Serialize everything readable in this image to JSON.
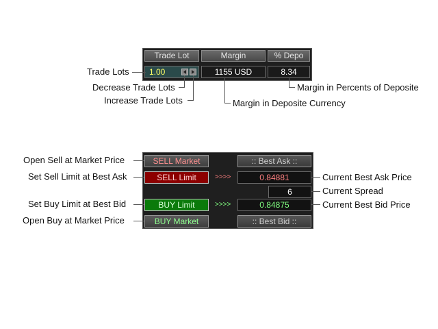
{
  "top_panel": {
    "headers": {
      "trade_lot": "Trade Lot",
      "margin": "Margin",
      "pct_depo": "% Depo"
    },
    "lot_value": "1.00",
    "margin_value": "1155 USD",
    "pct_value": "8.34"
  },
  "bottom_panel": {
    "sell_market": "SELL Market",
    "sell_limit": "SELL Limit",
    "buy_limit": "BUY Limit",
    "buy_market": "BUY Market",
    "best_ask_label": ":: Best Ask ::",
    "best_bid_label": ":: Best Bid ::",
    "sell_arrows": ">>>>",
    "buy_arrows": ">>>>",
    "ask_value": "0.84881",
    "spread_value": "6",
    "bid_value": "0.84875"
  },
  "annotations": {
    "trade_lots": "Trade Lots",
    "decrease_lots": "Decrease Trade Lots",
    "increase_lots": "Increase Trade Lots",
    "margin_currency": "Margin in Deposite Currency",
    "margin_percent": "Margin in Percents of Deposite",
    "open_sell": "Open Sell at Market Price",
    "set_sell_limit": "Set Sell Limit at Best Ask",
    "set_buy_limit": "Set Buy Limit at Best Bid",
    "open_buy": "Open Buy at Market Price",
    "best_ask_price": "Current Best Ask Price",
    "spread": "Current Spread",
    "best_bid_price": "Current Best Bid Price"
  },
  "colors": {
    "lot_text": "#ffff66",
    "sell_text": "#ff9090",
    "buy_text": "#90ff90",
    "ask_text": "#ff8080",
    "bid_text": "#80ff80",
    "spread_text": "#ffffff"
  }
}
